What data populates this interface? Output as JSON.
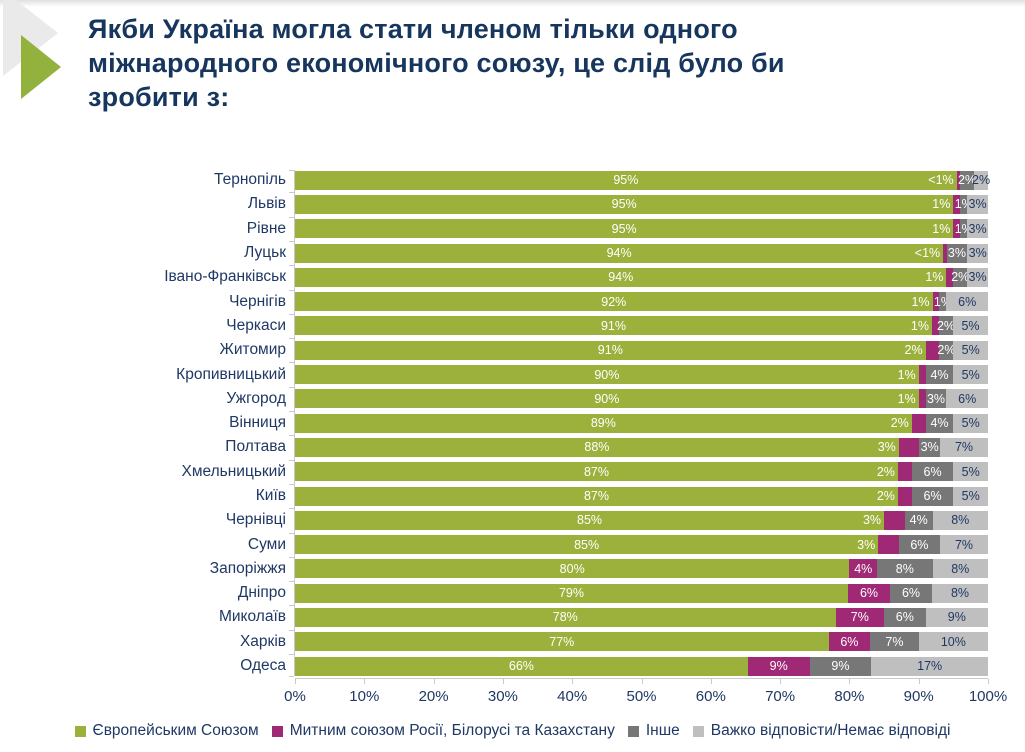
{
  "page": {
    "title_lines": [
      "Якби Україна могла стати членом тільки одного",
      "міжнародного економічного союзу, це слід було би",
      "зробити з:"
    ]
  },
  "decoration": {
    "gray_triangle_color": "#eaeaea",
    "green_triangle_color": "#93b13d"
  },
  "chart_data": {
    "type": "bar",
    "orientation": "horizontal",
    "stacked": true,
    "grid": false,
    "legend_position": "bottom",
    "xlim": [
      0,
      100
    ],
    "x_ticks": [
      "0%",
      "10%",
      "20%",
      "30%",
      "40%",
      "50%",
      "60%",
      "70%",
      "80%",
      "90%",
      "100%"
    ],
    "categories": [
      "Тернопіль",
      "Львів",
      "Рівне",
      "Луцьк",
      "Івано-Франківськ",
      "Чернігів",
      "Черкаси",
      "Житомир",
      "Кропивницький",
      "Ужгород",
      "Вінниця",
      "Полтава",
      "Хмельницький",
      "Київ",
      "Чернівці",
      "Суми",
      "Запоріжжя",
      "Дніпро",
      "Миколаїв",
      "Харків",
      "Одеса"
    ],
    "series": [
      {
        "name": "Європейським Союзом",
        "color": "#9cb13c",
        "label_color": "#ffffff",
        "values": [
          95,
          95,
          95,
          94,
          94,
          92,
          91,
          91,
          90,
          90,
          89,
          88,
          87,
          87,
          85,
          85,
          80,
          79,
          78,
          77,
          66
        ],
        "labels": [
          "95%",
          "95%",
          "95%",
          "94%",
          "94%",
          "92%",
          "91%",
          "91%",
          "90%",
          "90%",
          "89%",
          "88%",
          "87%",
          "87%",
          "85%",
          "85%",
          "80%",
          "79%",
          "78%",
          "77%",
          "66%"
        ]
      },
      {
        "name": "Митним союзом Росії, Білорусі та Казахстану",
        "color": "#a02975",
        "label_color": "#ffffff",
        "values": [
          0.5,
          1,
          1,
          0.5,
          1,
          1,
          1,
          2,
          1,
          1,
          2,
          3,
          2,
          2,
          3,
          3,
          4,
          6,
          7,
          6,
          9
        ],
        "labels": [
          "<1%",
          "1%",
          "1%",
          "<1%",
          "1%",
          "1%",
          "1%",
          "2%",
          "1%",
          "1%",
          "2%",
          "3%",
          "2%",
          "2%",
          "3%",
          "3%",
          "4%",
          "6%",
          "7%",
          "6%",
          "9%"
        ]
      },
      {
        "name": "Інше",
        "color": "#777777",
        "label_color": "#ffffff",
        "values": [
          2,
          1,
          1,
          3,
          2,
          1,
          2,
          2,
          4,
          3,
          4,
          3,
          6,
          6,
          4,
          6,
          8,
          6,
          6,
          7,
          9
        ],
        "labels": [
          "2%",
          "1%",
          "1%",
          "3%",
          "2%",
          "1%",
          "2%",
          "2%",
          "4%",
          "3%",
          "4%",
          "3%",
          "6%",
          "6%",
          "4%",
          "6%",
          "8%",
          "6%",
          "6%",
          "7%",
          "9%"
        ]
      },
      {
        "name": "Важко відповісти/Немає відповіді",
        "color": "#bfbfbf",
        "label_color": "#1F3864",
        "values": [
          2,
          3,
          3,
          3,
          3,
          6,
          5,
          5,
          5,
          6,
          5,
          7,
          5,
          5,
          8,
          7,
          8,
          8,
          9,
          10,
          17
        ],
        "labels": [
          "2%",
          "3%",
          "3%",
          "3%",
          "3%",
          "6%",
          "5%",
          "5%",
          "5%",
          "6%",
          "5%",
          "7%",
          "5%",
          "5%",
          "8%",
          "7%",
          "8%",
          "8%",
          "9%",
          "10%",
          "17%"
        ]
      }
    ]
  }
}
